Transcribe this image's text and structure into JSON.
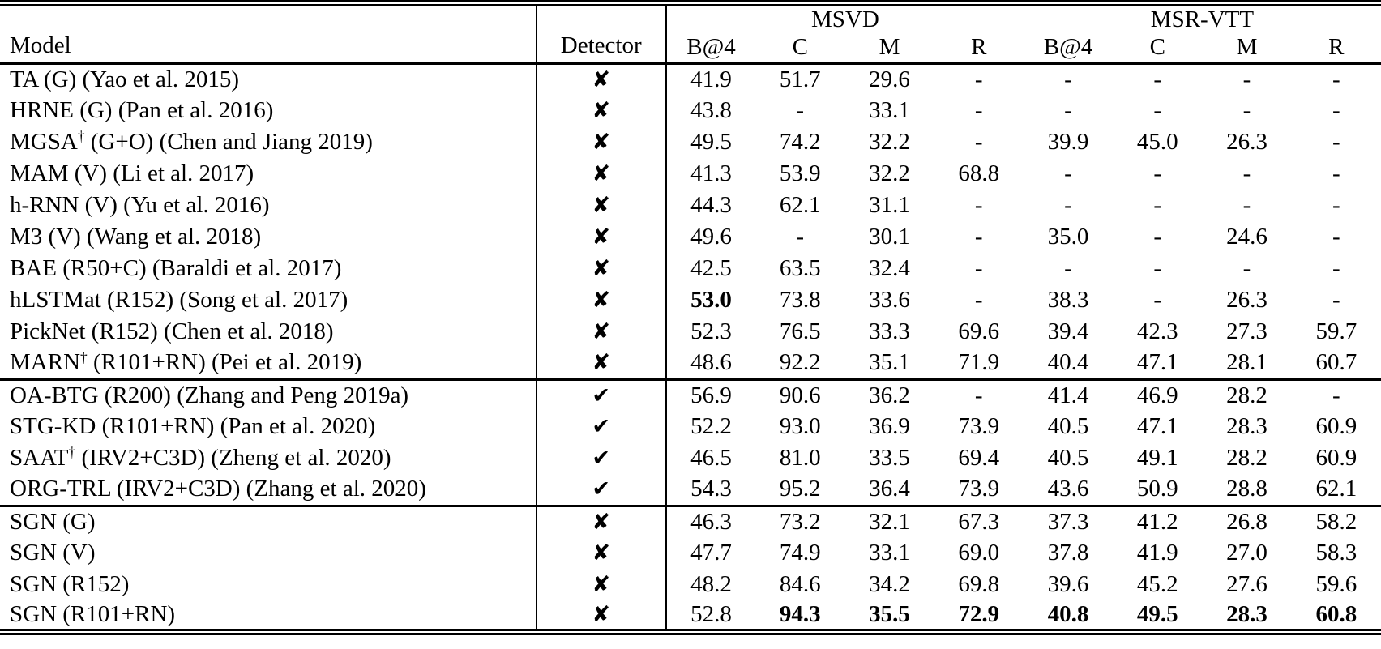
{
  "glyphs": {
    "check": "✔",
    "cross": "✘"
  },
  "header": {
    "model": "Model",
    "detector": "Detector",
    "groups": [
      {
        "label": "MSVD"
      },
      {
        "label": "MSR-VTT"
      }
    ],
    "metrics": [
      "B@4",
      "C",
      "M",
      "R",
      "B@4",
      "C",
      "M",
      "R"
    ]
  },
  "sections": [
    {
      "rows": [
        {
          "model_pre": "TA (G) (Yao et al. 2015)",
          "model_sup": "",
          "model_post": "",
          "detector": "cross",
          "values": [
            "41.9",
            "51.7",
            "29.6",
            "-",
            "-",
            "-",
            "-",
            "-"
          ],
          "bold": []
        },
        {
          "model_pre": "HRNE (G) (Pan et al. 2016)",
          "model_sup": "",
          "model_post": "",
          "detector": "cross",
          "values": [
            "43.8",
            "-",
            "33.1",
            "-",
            "-",
            "-",
            "-",
            "-"
          ],
          "bold": []
        },
        {
          "model_pre": "MGSA",
          "model_sup": "†",
          "model_post": " (G+O) (Chen and Jiang 2019)",
          "detector": "cross",
          "values": [
            "49.5",
            "74.2",
            "32.2",
            "-",
            "39.9",
            "45.0",
            "26.3",
            "-"
          ],
          "bold": []
        },
        {
          "model_pre": "MAM (V) (Li et al. 2017)",
          "model_sup": "",
          "model_post": "",
          "detector": "cross",
          "values": [
            "41.3",
            "53.9",
            "32.2",
            "68.8",
            "-",
            "-",
            "-",
            "-"
          ],
          "bold": []
        },
        {
          "model_pre": "h-RNN (V) (Yu et al. 2016)",
          "model_sup": "",
          "model_post": "",
          "detector": "cross",
          "values": [
            "44.3",
            "62.1",
            "31.1",
            "-",
            "-",
            "-",
            "-",
            "-"
          ],
          "bold": []
        },
        {
          "model_pre": "M3 (V) (Wang et al. 2018)",
          "model_sup": "",
          "model_post": "",
          "detector": "cross",
          "values": [
            "49.6",
            "-",
            "30.1",
            "-",
            "35.0",
            "-",
            "24.6",
            "-"
          ],
          "bold": []
        },
        {
          "model_pre": "BAE (R50+C) (Baraldi et al. 2017)",
          "model_sup": "",
          "model_post": "",
          "detector": "cross",
          "values": [
            "42.5",
            "63.5",
            "32.4",
            "-",
            "-",
            "-",
            "-",
            "-"
          ],
          "bold": []
        },
        {
          "model_pre": "hLSTMat (R152) (Song et al. 2017)",
          "model_sup": "",
          "model_post": "",
          "detector": "cross",
          "values": [
            "53.0",
            "73.8",
            "33.6",
            "-",
            "38.3",
            "-",
            "26.3",
            "-"
          ],
          "bold": [
            0
          ]
        },
        {
          "model_pre": "PickNet (R152) (Chen et al. 2018)",
          "model_sup": "",
          "model_post": "",
          "detector": "cross",
          "values": [
            "52.3",
            "76.5",
            "33.3",
            "69.6",
            "39.4",
            "42.3",
            "27.3",
            "59.7"
          ],
          "bold": []
        },
        {
          "model_pre": "MARN",
          "model_sup": "†",
          "model_post": " (R101+RN) (Pei et al. 2019)",
          "detector": "cross",
          "values": [
            "48.6",
            "92.2",
            "35.1",
            "71.9",
            "40.4",
            "47.1",
            "28.1",
            "60.7"
          ],
          "bold": []
        }
      ]
    },
    {
      "rows": [
        {
          "model_pre": "OA-BTG (R200) (Zhang and Peng 2019a)",
          "model_sup": "",
          "model_post": "",
          "detector": "check",
          "values": [
            "56.9",
            "90.6",
            "36.2",
            "-",
            "41.4",
            "46.9",
            "28.2",
            "-"
          ],
          "bold": []
        },
        {
          "model_pre": "STG-KD (R101+RN) (Pan et al. 2020)",
          "model_sup": "",
          "model_post": "",
          "detector": "check",
          "values": [
            "52.2",
            "93.0",
            "36.9",
            "73.9",
            "40.5",
            "47.1",
            "28.3",
            "60.9"
          ],
          "bold": []
        },
        {
          "model_pre": "SAAT",
          "model_sup": "†",
          "model_post": " (IRV2+C3D) (Zheng et al. 2020)",
          "detector": "check",
          "values": [
            "46.5",
            "81.0",
            "33.5",
            "69.4",
            "40.5",
            "49.1",
            "28.2",
            "60.9"
          ],
          "bold": []
        },
        {
          "model_pre": "ORG-TRL (IRV2+C3D) (Zhang et al. 2020)",
          "model_sup": "",
          "model_post": "",
          "detector": "check",
          "values": [
            "54.3",
            "95.2",
            "36.4",
            "73.9",
            "43.6",
            "50.9",
            "28.8",
            "62.1"
          ],
          "bold": []
        }
      ]
    },
    {
      "rows": [
        {
          "model_pre": "SGN (G)",
          "model_sup": "",
          "model_post": "",
          "detector": "cross",
          "values": [
            "46.3",
            "73.2",
            "32.1",
            "67.3",
            "37.3",
            "41.2",
            "26.8",
            "58.2"
          ],
          "bold": []
        },
        {
          "model_pre": "SGN (V)",
          "model_sup": "",
          "model_post": "",
          "detector": "cross",
          "values": [
            "47.7",
            "74.9",
            "33.1",
            "69.0",
            "37.8",
            "41.9",
            "27.0",
            "58.3"
          ],
          "bold": []
        },
        {
          "model_pre": "SGN (R152)",
          "model_sup": "",
          "model_post": "",
          "detector": "cross",
          "values": [
            "48.2",
            "84.6",
            "34.2",
            "69.8",
            "39.6",
            "45.2",
            "27.6",
            "59.6"
          ],
          "bold": []
        },
        {
          "model_pre": "SGN (R101+RN)",
          "model_sup": "",
          "model_post": "",
          "detector": "cross",
          "values": [
            "52.8",
            "94.3",
            "35.5",
            "72.9",
            "40.8",
            "49.5",
            "28.3",
            "60.8"
          ],
          "bold": [
            1,
            2,
            3,
            4,
            5,
            6,
            7
          ]
        }
      ]
    }
  ]
}
